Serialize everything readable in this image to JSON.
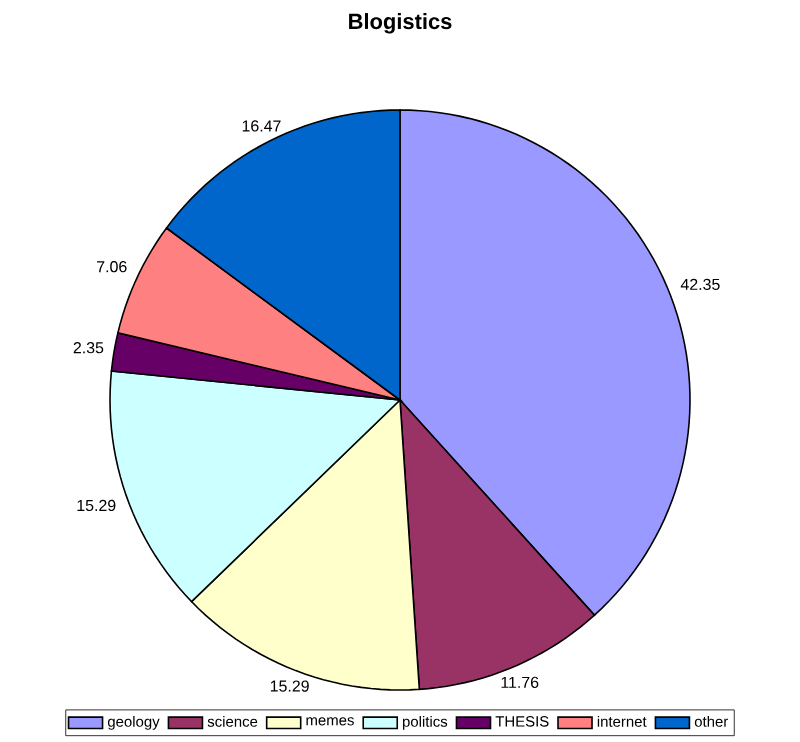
{
  "chart_data": {
    "type": "pie",
    "title": "Blogistics",
    "categories": [
      "geology",
      "science",
      "memes",
      "politics",
      "THESIS",
      "internet",
      "other"
    ],
    "values": [
      42.35,
      11.76,
      15.29,
      15.29,
      2.35,
      7.06,
      16.47
    ],
    "colors": [
      "#9999ff",
      "#993366",
      "#ffffcc",
      "#ccffff",
      "#660066",
      "#ff8080",
      "#0066cc"
    ],
    "data_labels": true,
    "legend": "bottom"
  }
}
